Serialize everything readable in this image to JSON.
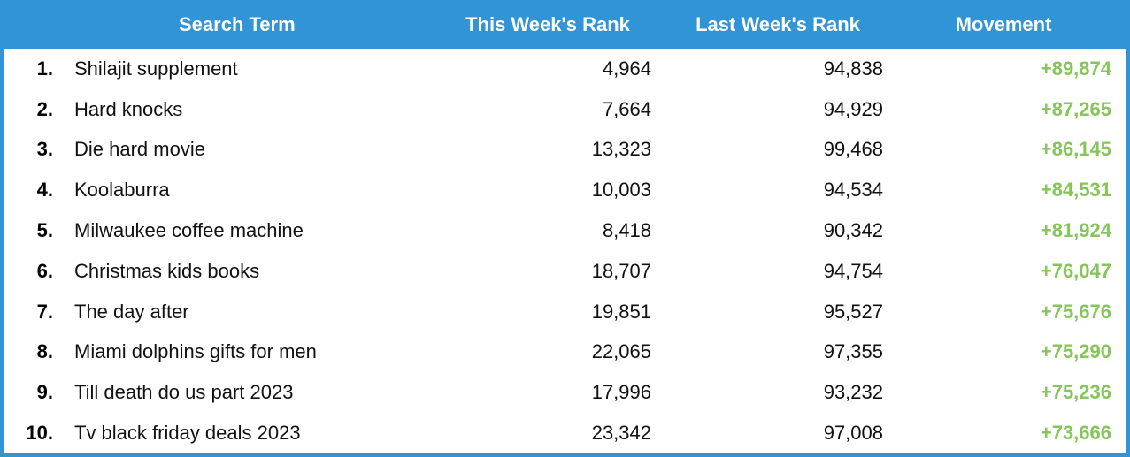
{
  "header": {
    "search_term": "Search Term",
    "this_week": "This Week's Rank",
    "last_week": "Last Week's Rank",
    "movement": "Movement"
  },
  "rows": [
    {
      "num": "1.",
      "term": "Shilajit supplement",
      "this_week": "4,964",
      "last_week": "94,838",
      "movement": "+89,874"
    },
    {
      "num": "2.",
      "term": "Hard knocks",
      "this_week": "7,664",
      "last_week": "94,929",
      "movement": "+87,265"
    },
    {
      "num": "3.",
      "term": "Die hard movie",
      "this_week": "13,323",
      "last_week": "99,468",
      "movement": "+86,145"
    },
    {
      "num": "4.",
      "term": "Koolaburra",
      "this_week": "10,003",
      "last_week": "94,534",
      "movement": "+84,531"
    },
    {
      "num": "5.",
      "term": "Milwaukee coffee machine",
      "this_week": "8,418",
      "last_week": "90,342",
      "movement": "+81,924"
    },
    {
      "num": "6.",
      "term": "Christmas kids books",
      "this_week": "18,707",
      "last_week": "94,754",
      "movement": "+76,047"
    },
    {
      "num": "7.",
      "term": "The day after",
      "this_week": "19,851",
      "last_week": "95,527",
      "movement": "+75,676"
    },
    {
      "num": "8.",
      "term": "Miami dolphins gifts for men",
      "this_week": "22,065",
      "last_week": "97,355",
      "movement": "+75,290"
    },
    {
      "num": "9.",
      "term": "Till death do us part 2023",
      "this_week": "17,996",
      "last_week": "93,232",
      "movement": "+75,236"
    },
    {
      "num": "10.",
      "term": "Tv black friday deals 2023",
      "this_week": "23,342",
      "last_week": "97,008",
      "movement": "+73,666"
    }
  ],
  "colors": {
    "header_bg": "#3194d6",
    "header_text": "#ffffff",
    "movement_text": "#86c55a"
  }
}
